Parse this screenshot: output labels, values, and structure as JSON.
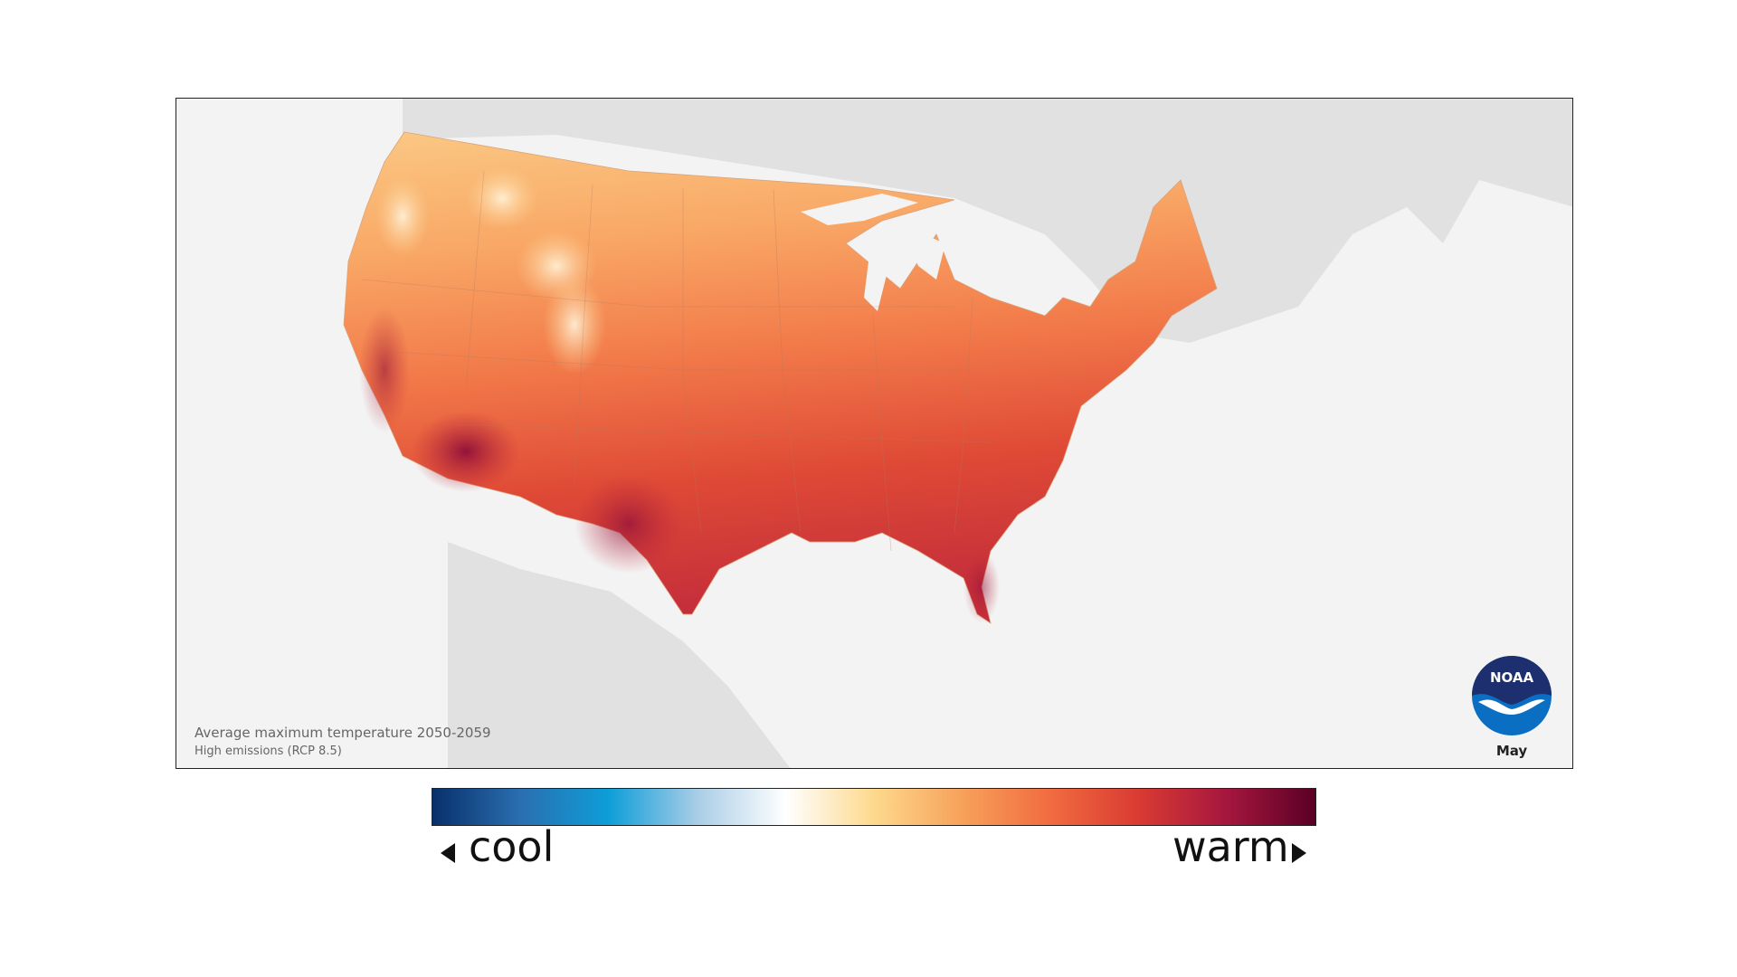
{
  "map": {
    "caption_title": "Average maximum temperature 2050-2059",
    "caption_subtitle": "High emissions (RCP 8.5)",
    "month": "May",
    "logo_text": "NOAA"
  },
  "legend": {
    "low_label": "cool",
    "high_label": "warm",
    "scale_colors": [
      "#08306b",
      "#2a6fb0",
      "#0e9ed8",
      "#a9cde6",
      "#ffffff",
      "#fdd98d",
      "#f7a15a",
      "#f16b40",
      "#d93b32",
      "#a5163e",
      "#5a0025"
    ]
  },
  "colors": {
    "ocean": "#f3f3f3",
    "land_outside": "#e1e1e1",
    "frame": "#222222",
    "noaa_blue": "#0a6fc2",
    "noaa_navy": "#1e2f6f"
  }
}
